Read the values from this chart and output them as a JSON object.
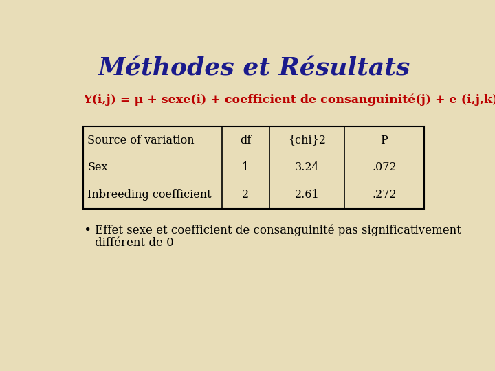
{
  "title": "Méthodes et Résultats",
  "title_color": "#1a1a8c",
  "title_fontsize": 26,
  "formula": "Y(i,j) = μ + sexe(i) + coefficient de consanguinité(j) + e (i,j,k)",
  "formula_color": "#bb0000",
  "formula_fontsize": 12.5,
  "background_color": "#e8ddb8",
  "table_headers": [
    "Source of variation",
    "df",
    "{chi}2",
    "P"
  ],
  "table_rows": [
    [
      "Sex",
      "1",
      "3.24",
      ".072"
    ],
    [
      "Inbreeding coefficient",
      "2",
      "2.61",
      ".272"
    ]
  ],
  "table_text_color": "#000000",
  "table_fontsize": 11.5,
  "bullet_text_line1": "Effet sexe et coefficient de consanguinité pas significativement",
  "bullet_text_line2": "différent de 0",
  "bullet_color": "#000000",
  "bullet_fontsize": 12
}
